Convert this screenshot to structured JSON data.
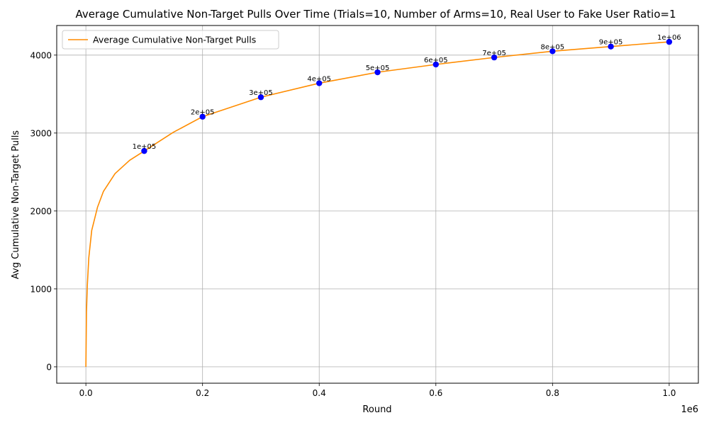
{
  "chart_data": {
    "type": "line",
    "title": "Average Cumulative Non-Target Pulls Over Time (Trials=10, Number of Arms=10, Real User to Fake User Ratio=1",
    "xlabel": "Round",
    "ylabel": "Avg Cumulative Non-Target Pulls",
    "x_offset_label": "1e6",
    "xlim": [
      -50000,
      1050000
    ],
    "ylim": [
      -210,
      4380
    ],
    "x_ticks": [
      0,
      200000,
      400000,
      600000,
      800000,
      1000000
    ],
    "x_tick_labels": [
      "0.0",
      "0.2",
      "0.4",
      "0.6",
      "0.8",
      "1.0"
    ],
    "y_ticks": [
      0,
      1000,
      2000,
      3000,
      4000
    ],
    "y_tick_labels": [
      "0",
      "1000",
      "2000",
      "3000",
      "4000"
    ],
    "grid": true,
    "legend": {
      "placement": "top-left",
      "entries": [
        "Average Cumulative Non-Target Pulls"
      ]
    },
    "colors": {
      "line": "#ff8c00",
      "markers": "#0000ff",
      "grid": "#b0b0b0"
    },
    "series": [
      {
        "name": "Average Cumulative Non-Target Pulls",
        "x": [
          0,
          1000,
          2500,
          5000,
          10000,
          20000,
          30000,
          50000,
          75000,
          100000,
          150000,
          200000,
          300000,
          400000,
          500000,
          600000,
          700000,
          800000,
          900000,
          1000000
        ],
        "y": [
          0,
          700,
          1050,
          1400,
          1750,
          2050,
          2250,
          2480,
          2650,
          2770,
          3010,
          3210,
          3460,
          3640,
          3780,
          3880,
          3970,
          4050,
          4110,
          4170
        ]
      }
    ],
    "markers": {
      "x": [
        100000,
        200000,
        300000,
        400000,
        500000,
        600000,
        700000,
        800000,
        900000,
        1000000
      ],
      "y": [
        2770,
        3210,
        3460,
        3640,
        3780,
        3880,
        3970,
        4050,
        4110,
        4170
      ],
      "labels": [
        "1e+05",
        "2e+05",
        "3e+05",
        "4e+05",
        "5e+05",
        "6e+05",
        "7e+05",
        "8e+05",
        "9e+05",
        "1e+06"
      ]
    }
  }
}
